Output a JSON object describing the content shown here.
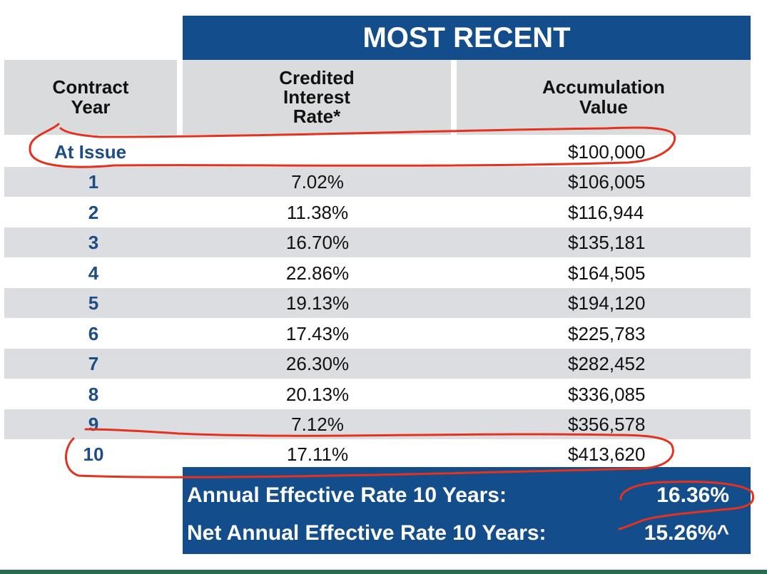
{
  "table": {
    "banner": "MOST RECENT",
    "columns": {
      "year": "Contract\nYear",
      "rate": "Credited\nInterest\nRate*",
      "value": "Accumulation\nValue"
    },
    "rows": [
      {
        "year": "At Issue",
        "rate": "",
        "value": "$100,000"
      },
      {
        "year": "1",
        "rate": "7.02%",
        "value": "$106,005"
      },
      {
        "year": "2",
        "rate": "11.38%",
        "value": "$116,944"
      },
      {
        "year": "3",
        "rate": "16.70%",
        "value": "$135,181"
      },
      {
        "year": "4",
        "rate": "22.86%",
        "value": "$164,505"
      },
      {
        "year": "5",
        "rate": "19.13%",
        "value": "$194,120"
      },
      {
        "year": "6",
        "rate": "17.43%",
        "value": "$225,783"
      },
      {
        "year": "7",
        "rate": "26.30%",
        "value": "$282,452"
      },
      {
        "year": "8",
        "rate": "20.13%",
        "value": "$336,085"
      },
      {
        "year": "9",
        "rate": "7.12%",
        "value": "$356,578"
      },
      {
        "year": "10",
        "rate": "17.11%",
        "value": "$413,620"
      }
    ]
  },
  "summary": {
    "annual_label": "Annual Effective Rate 10 Years:",
    "annual_value": "16.36%",
    "net_label": "Net Annual Effective Rate 10 Years:",
    "net_value": "15.26%^"
  },
  "colors": {
    "header_blue": "#144d8c",
    "row_shade": "#dcdde0",
    "year_text": "#1d4d83",
    "annotation_red": "#e3321f"
  }
}
